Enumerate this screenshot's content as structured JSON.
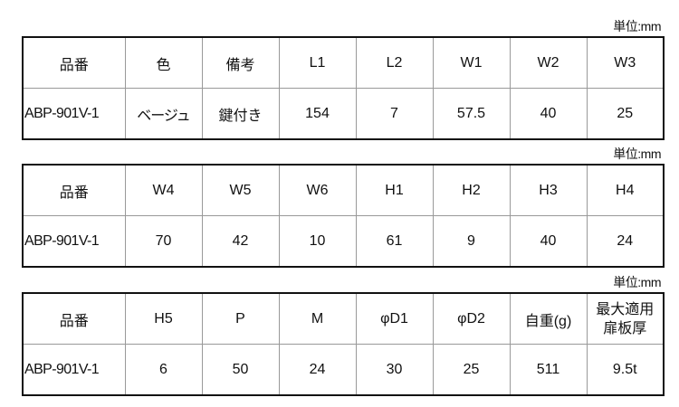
{
  "tables": [
    {
      "unit": "単位:mm",
      "headers": [
        "品番",
        "色",
        "備考",
        "L1",
        "L2",
        "W1",
        "W2",
        "W3"
      ],
      "row": [
        "ABP-901V-1",
        "ベージュ",
        "鍵付き",
        "154",
        "7",
        "57.5",
        "40",
        "25"
      ]
    },
    {
      "unit": "単位:mm",
      "headers": [
        "品番",
        "W4",
        "W5",
        "W6",
        "H1",
        "H2",
        "H3",
        "H4"
      ],
      "row": [
        "ABP-901V-1",
        "70",
        "42",
        "10",
        "61",
        "9",
        "40",
        "24"
      ]
    },
    {
      "unit": "単位:mm",
      "headers": [
        "品番",
        "H5",
        "P",
        "M",
        "φD1",
        "φD2",
        "自重(g)",
        "最大適用扉板厚"
      ],
      "header_last_lines": [
        "最大適用",
        "扉板厚"
      ],
      "row": [
        "ABP-901V-1",
        "6",
        "50",
        "24",
        "30",
        "25",
        "511",
        "9.5t"
      ]
    }
  ]
}
